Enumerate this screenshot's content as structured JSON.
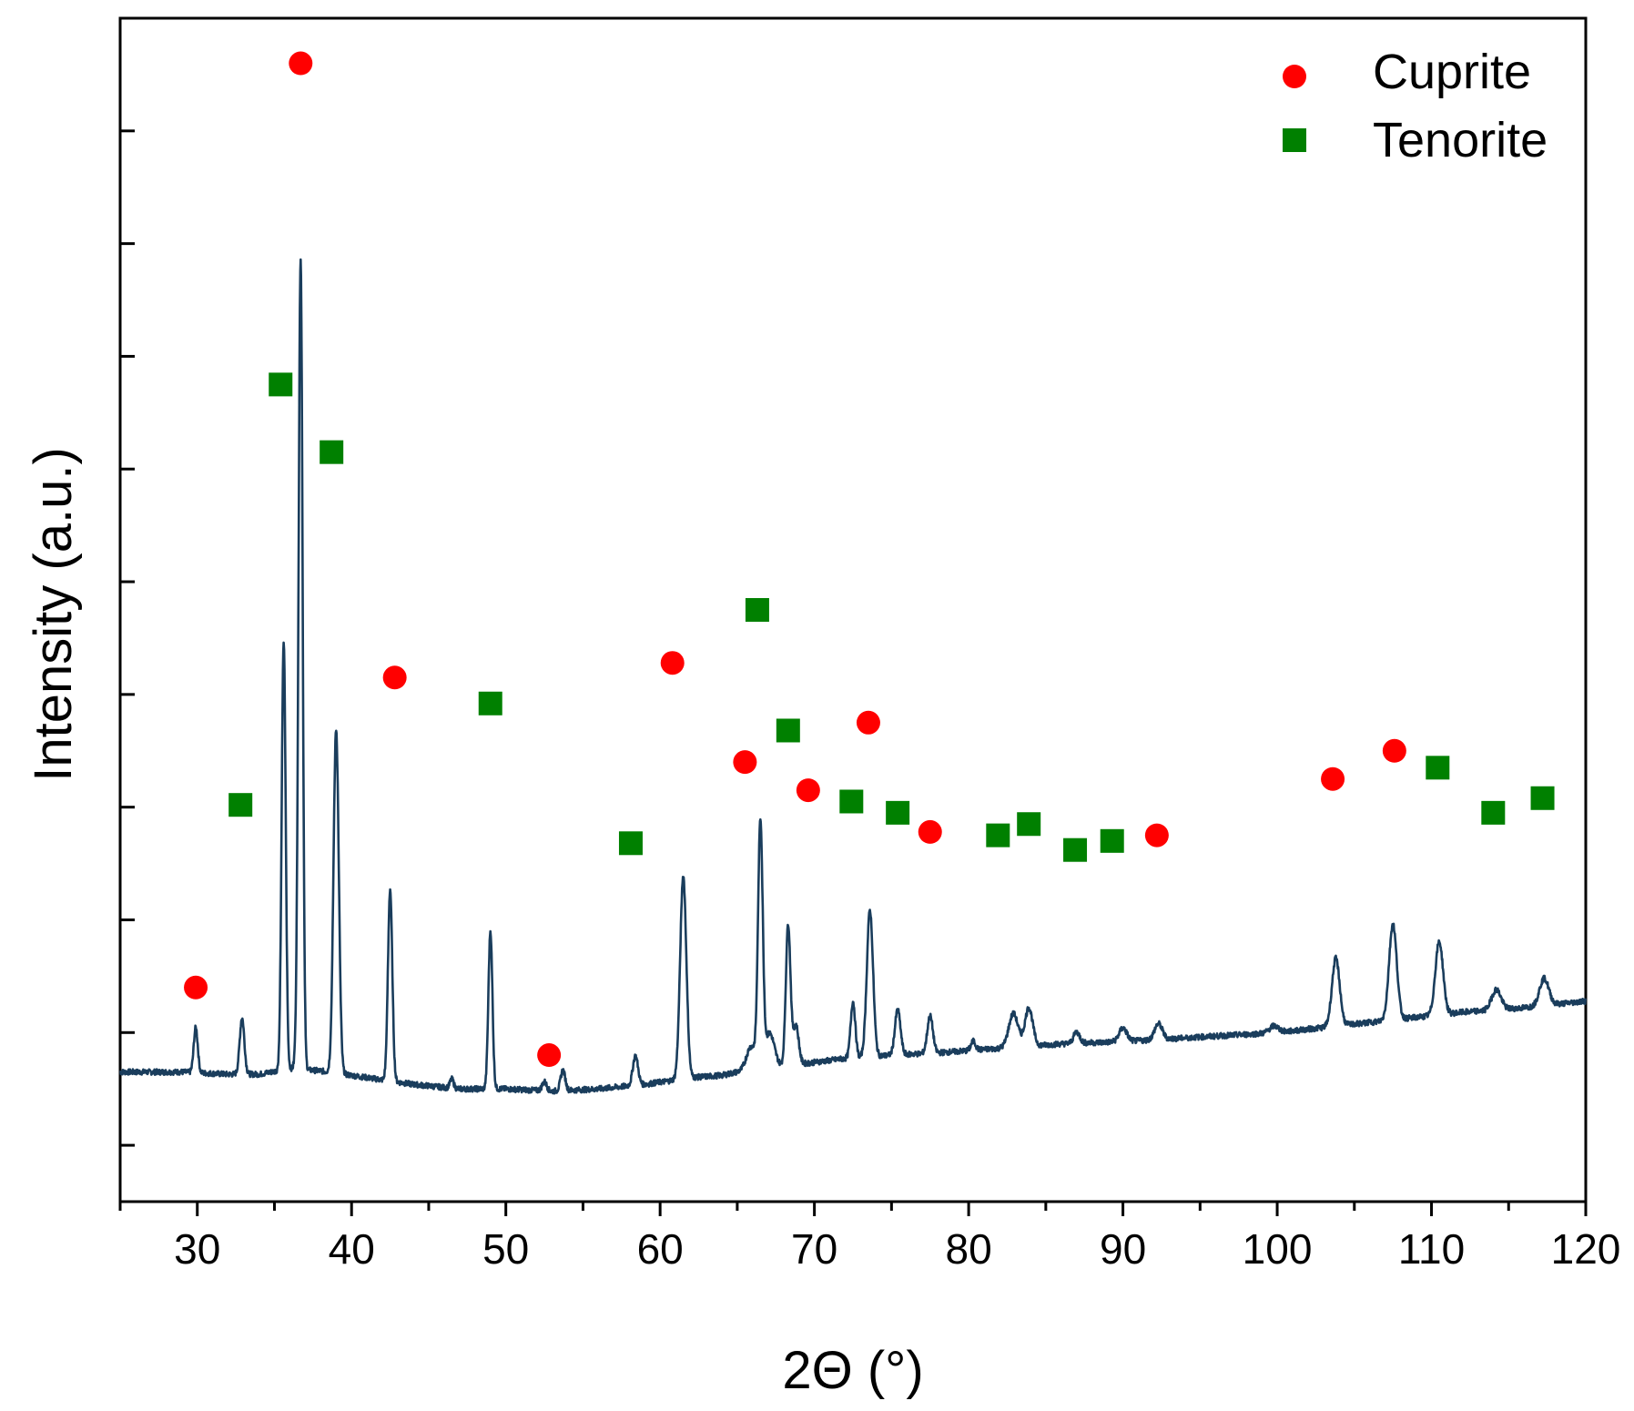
{
  "chart_data": {
    "type": "line",
    "title": "",
    "xlabel": "2Θ (°)",
    "ylabel": "Intensity (a.u.)",
    "xlim": [
      25,
      120
    ],
    "ylim": [
      -5,
      100
    ],
    "x_ticks": [
      30,
      40,
      50,
      60,
      70,
      80,
      90,
      100,
      110,
      120
    ],
    "x_tick_labels": [
      "30",
      "40",
      "50",
      "60",
      "70",
      "80",
      "90",
      "100",
      "110",
      "120"
    ],
    "y_ticks": [
      0,
      10,
      20,
      30,
      40,
      50,
      60,
      70,
      80,
      90
    ],
    "y_tick_labels": [],
    "grid": false,
    "legend_position": "top-right",
    "line_color": "#1a3d5c",
    "baseline": [
      [
        25,
        6.5
      ],
      [
        29,
        6.5
      ],
      [
        32,
        6.3
      ],
      [
        34,
        6.3
      ],
      [
        36,
        6.8
      ],
      [
        38,
        6.6
      ],
      [
        41,
        6.0
      ],
      [
        44,
        5.4
      ],
      [
        47,
        5.0
      ],
      [
        50,
        5.0
      ],
      [
        53,
        4.8
      ],
      [
        56,
        5.0
      ],
      [
        59,
        5.4
      ],
      [
        62,
        6.0
      ],
      [
        64,
        6.2
      ],
      [
        66,
        6.8
      ],
      [
        69,
        7.2
      ],
      [
        72,
        7.7
      ],
      [
        75,
        8.0
      ],
      [
        78,
        8.2
      ],
      [
        82,
        8.6
      ],
      [
        86,
        9.0
      ],
      [
        90,
        9.2
      ],
      [
        95,
        9.6
      ],
      [
        100,
        10.0
      ],
      [
        104,
        10.6
      ],
      [
        108,
        11.2
      ],
      [
        112,
        11.8
      ],
      [
        116,
        12.2
      ],
      [
        120,
        12.8
      ]
    ],
    "peaks": [
      [
        29.9,
        4.0,
        0.13
      ],
      [
        32.9,
        5.0,
        0.15
      ],
      [
        35.6,
        38.0,
        0.13
      ],
      [
        36.5,
        4.0,
        0.12
      ],
      [
        36.7,
        71.0,
        0.13
      ],
      [
        39.0,
        30.5,
        0.17
      ],
      [
        42.5,
        17.0,
        0.14
      ],
      [
        46.5,
        0.8,
        0.12
      ],
      [
        49.0,
        14.0,
        0.13
      ],
      [
        52.5,
        0.8,
        0.15
      ],
      [
        53.7,
        1.8,
        0.15
      ],
      [
        58.4,
        2.6,
        0.17
      ],
      [
        61.5,
        18.0,
        0.2
      ],
      [
        65.9,
        2.0,
        0.3
      ],
      [
        66.5,
        21.5,
        0.15
      ],
      [
        67.1,
        3.0,
        0.3
      ],
      [
        68.3,
        12.5,
        0.15
      ],
      [
        68.8,
        3.5,
        0.18
      ],
      [
        72.5,
        5.0,
        0.15
      ],
      [
        73.6,
        13.0,
        0.2
      ],
      [
        75.4,
        4.0,
        0.18
      ],
      [
        77.5,
        3.3,
        0.18
      ],
      [
        80.3,
        0.8,
        0.15
      ],
      [
        82.9,
        3.0,
        0.3
      ],
      [
        83.9,
        3.4,
        0.25
      ],
      [
        87.0,
        1.0,
        0.2
      ],
      [
        90.0,
        1.2,
        0.25
      ],
      [
        92.3,
        1.4,
        0.25
      ],
      [
        99.8,
        0.6,
        0.3
      ],
      [
        103.8,
        6.0,
        0.25
      ],
      [
        107.5,
        8.5,
        0.25
      ],
      [
        110.5,
        6.5,
        0.25
      ],
      [
        114.2,
        1.8,
        0.3
      ],
      [
        117.3,
        2.4,
        0.3
      ]
    ],
    "series": [
      {
        "name": "Cuprite",
        "marker": "circle",
        "color": "#ff0000",
        "points": [
          [
            29.9,
            14.0
          ],
          [
            36.7,
            96.0
          ],
          [
            42.8,
            41.5
          ],
          [
            52.8,
            8.0
          ],
          [
            60.8,
            42.8
          ],
          [
            65.5,
            34.0
          ],
          [
            69.6,
            31.5
          ],
          [
            73.5,
            37.5
          ],
          [
            77.5,
            27.8
          ],
          [
            92.2,
            27.5
          ],
          [
            103.6,
            32.5
          ],
          [
            107.6,
            35.0
          ]
        ]
      },
      {
        "name": "Tenorite",
        "marker": "square",
        "color": "#008000",
        "points": [
          [
            32.8,
            30.2
          ],
          [
            35.4,
            67.5
          ],
          [
            38.7,
            61.5
          ],
          [
            49.0,
            39.2
          ],
          [
            58.1,
            26.8
          ],
          [
            66.3,
            47.5
          ],
          [
            68.3,
            36.8
          ],
          [
            72.4,
            30.5
          ],
          [
            75.4,
            29.5
          ],
          [
            81.9,
            27.5
          ],
          [
            83.9,
            28.5
          ],
          [
            86.9,
            26.2
          ],
          [
            89.3,
            27.0
          ],
          [
            110.4,
            33.5
          ],
          [
            114.0,
            29.5
          ],
          [
            117.2,
            30.8
          ]
        ]
      }
    ],
    "legend": [
      {
        "label": "Cuprite",
        "marker": "circle",
        "color": "#ff0000"
      },
      {
        "label": "Tenorite",
        "marker": "square",
        "color": "#008000"
      }
    ]
  }
}
